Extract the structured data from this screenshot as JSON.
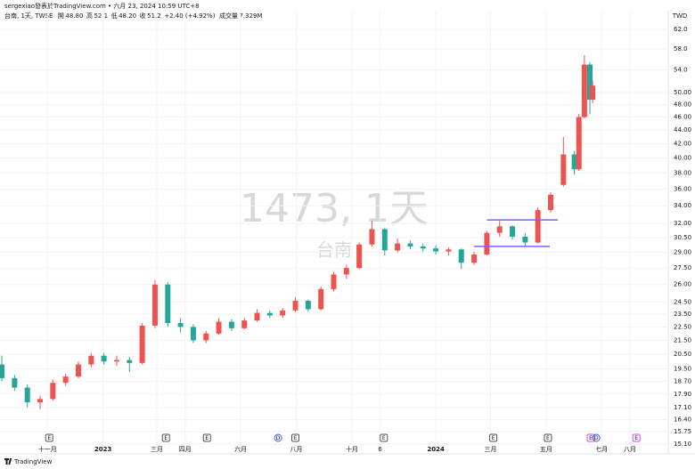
{
  "header": {
    "author": "sergexiao發表於TradingView.com • 六月 23, 2024 10:59 UTC+8",
    "symbol": "台南, 1天, TWSE",
    "ohlc": [
      {
        "label": "開",
        "value": "48.80"
      },
      {
        "label": "高",
        "value": "52.1"
      },
      {
        "label": "低",
        "value": "48.20"
      },
      {
        "label": "收",
        "value": "51.2"
      }
    ],
    "change": "+2.40 (+4.92%)",
    "volume_label": "成交量",
    "volume": "7.329M"
  },
  "watermark": {
    "line1": "1473, 1天",
    "line2": "台南"
  },
  "footer": {
    "brand": "TradingView"
  },
  "chart_data": {
    "type": "candlestick",
    "currency": "TWD",
    "log_scale": true,
    "grid": true,
    "up_color": "#ef5350",
    "down_color": "#26a69a",
    "x": [
      "2022-09-12",
      "2022-09-26",
      "2022-10-10",
      "2022-10-24",
      "2022-11-07",
      "2022-11-21",
      "2022-12-05",
      "2022-12-19",
      "2023-01-02",
      "2023-01-16",
      "2023-01-30",
      "2023-02-13",
      "2023-02-27",
      "2023-03-13",
      "2023-03-27",
      "2023-04-10",
      "2023-04-24",
      "2023-05-08",
      "2023-05-22",
      "2023-06-05",
      "2023-06-19",
      "2023-07-03",
      "2023-07-17",
      "2023-07-31",
      "2023-08-14",
      "2023-08-28",
      "2023-09-11",
      "2023-09-25",
      "2023-10-09",
      "2023-10-23",
      "2023-11-06",
      "2023-11-20",
      "2023-12-04",
      "2023-12-18",
      "2024-01-01",
      "2024-01-15",
      "2024-01-29",
      "2024-02-12",
      "2024-02-26",
      "2024-03-11",
      "2024-03-25",
      "2024-04-08",
      "2024-04-22",
      "2024-05-06",
      "2024-05-20",
      "2024-06-01",
      "2024-06-06",
      "2024-06-12",
      "2024-06-18",
      "2024-06-21"
    ],
    "open": [
      19.8,
      18.9,
      18.3,
      17.4,
      17.6,
      18.6,
      19.0,
      19.8,
      20.4,
      20.0,
      20.1,
      19.9,
      22.6,
      26.0,
      22.8,
      22.5,
      21.5,
      22.0,
      22.9,
      22.4,
      23.0,
      23.6,
      23.4,
      23.8,
      24.6,
      23.9,
      25.6,
      26.9,
      27.5,
      29.8,
      31.4,
      29.2,
      29.9,
      29.6,
      29.4,
      29.1,
      29.3,
      28.0,
      28.8,
      31.0,
      31.7,
      30.6,
      30.0,
      33.5,
      36.5,
      40.5,
      38.5,
      46.0,
      55.0,
      48.8
    ],
    "high": [
      20.4,
      19.1,
      18.5,
      17.8,
      18.8,
      19.2,
      20.0,
      20.6,
      20.6,
      20.4,
      20.3,
      22.8,
      26.4,
      26.2,
      23.2,
      22.7,
      22.2,
      23.2,
      23.1,
      23.2,
      23.9,
      23.8,
      24.0,
      24.9,
      24.7,
      25.8,
      27.1,
      27.8,
      30.0,
      32.3,
      31.5,
      30.4,
      30.2,
      29.9,
      29.7,
      29.5,
      29.4,
      29.1,
      31.2,
      32.3,
      31.8,
      31.0,
      33.8,
      35.6,
      43.0,
      41.0,
      46.5,
      56.8,
      55.5,
      52.1
    ],
    "low": [
      18.7,
      18.1,
      17.1,
      17.0,
      17.5,
      18.4,
      18.9,
      19.6,
      19.8,
      19.7,
      19.3,
      19.8,
      22.4,
      22.5,
      22.1,
      21.3,
      21.3,
      21.9,
      22.2,
      22.3,
      22.9,
      23.2,
      23.2,
      23.7,
      23.7,
      23.8,
      25.4,
      26.5,
      27.4,
      29.6,
      28.7,
      29.0,
      29.3,
      29.1,
      28.8,
      28.7,
      27.4,
      27.8,
      28.7,
      30.6,
      30.3,
      29.6,
      29.9,
      33.2,
      36.3,
      37.8,
      38.3,
      45.8,
      46.5,
      48.2
    ],
    "close": [
      18.9,
      18.3,
      17.4,
      17.6,
      18.6,
      19.0,
      19.8,
      20.4,
      20.0,
      20.1,
      19.9,
      22.6,
      26.0,
      22.8,
      22.5,
      21.5,
      22.0,
      22.9,
      22.4,
      23.0,
      23.6,
      23.4,
      23.8,
      24.6,
      23.9,
      25.6,
      26.9,
      27.5,
      29.8,
      31.4,
      29.2,
      29.9,
      29.6,
      29.4,
      29.1,
      29.3,
      28.0,
      28.8,
      31.0,
      31.7,
      30.6,
      30.0,
      33.5,
      35.3,
      40.5,
      38.5,
      46.0,
      55.0,
      48.8,
      51.2
    ],
    "xlim": [
      "2022-09-10",
      "2024-09-12"
    ],
    "xticks": [
      {
        "value": "2022-11-01",
        "label": "十一月"
      },
      {
        "value": "2023-01-01",
        "label": "2023"
      },
      {
        "value": "2023-03-01",
        "label": "三月"
      },
      {
        "value": "2023-04-01",
        "label": "四月"
      },
      {
        "value": "2023-06-01",
        "label": "六月"
      },
      {
        "value": "2023-08-01",
        "label": "八月"
      },
      {
        "value": "2023-10-01",
        "label": "十月"
      },
      {
        "value": "2023-11-01",
        "label": "6"
      },
      {
        "value": "2024-01-01",
        "label": "2024"
      },
      {
        "value": "2024-03-01",
        "label": "三月"
      },
      {
        "value": "2024-05-01",
        "label": "五月"
      },
      {
        "value": "2024-07-01",
        "label": "七月"
      },
      {
        "value": "2024-08-01",
        "label": "八月"
      }
    ],
    "ylim": [
      15.05,
      64.9
    ],
    "yticks": [
      {
        "value": 62,
        "label": "62.0"
      },
      {
        "value": 58,
        "label": "58.0"
      },
      {
        "value": 54,
        "label": "54.0"
      },
      {
        "value": 50,
        "label": "50.00"
      },
      {
        "value": 48,
        "label": "48.00"
      },
      {
        "value": 46,
        "label": "46.00"
      },
      {
        "value": 44,
        "label": "44.00"
      },
      {
        "value": 42,
        "label": "42.00"
      },
      {
        "value": 40,
        "label": "40.00"
      },
      {
        "value": 38,
        "label": "38.00"
      },
      {
        "value": 36,
        "label": "36.00"
      },
      {
        "value": 34,
        "label": "34.00"
      },
      {
        "value": 32,
        "label": "32.00"
      },
      {
        "value": 30.5,
        "label": "30.50"
      },
      {
        "value": 29,
        "label": "29.00"
      },
      {
        "value": 27.5,
        "label": "27.50"
      },
      {
        "value": 26,
        "label": "26.00"
      },
      {
        "value": 24.5,
        "label": "24.50"
      },
      {
        "value": 23.5,
        "label": "23.50"
      },
      {
        "value": 22.5,
        "label": "22.50"
      },
      {
        "value": 21.5,
        "label": "21.50"
      },
      {
        "value": 20.5,
        "label": "20.50"
      },
      {
        "value": 19.5,
        "label": "19.50"
      },
      {
        "value": 18.7,
        "label": "18.70"
      },
      {
        "value": 17.9,
        "label": "17.90"
      },
      {
        "value": 17.1,
        "label": "17.10"
      },
      {
        "value": 16.4,
        "label": "16.40"
      },
      {
        "value": 15.75,
        "label": "15.75"
      },
      {
        "value": 15.1,
        "label": "15.10"
      }
    ],
    "levels": [
      {
        "value": 32.4,
        "from": "2024-02-26",
        "to": "2024-05-14"
      },
      {
        "value": 29.6,
        "from": "2024-02-12",
        "to": "2024-05-05"
      }
    ],
    "level_color": "#7b61ff",
    "events": [
      {
        "date": "2022-11-03",
        "label": "E",
        "color": "#555555"
      },
      {
        "date": "2023-03-11",
        "label": "E",
        "color": "#555555"
      },
      {
        "date": "2023-04-25",
        "label": "E",
        "color": "#555555"
      },
      {
        "date": "2023-07-12",
        "label": "D",
        "color": "#2962ff"
      },
      {
        "date": "2023-07-31",
        "label": "E",
        "color": "#555555"
      },
      {
        "date": "2023-11-05",
        "label": "E",
        "color": "#555555"
      },
      {
        "date": "2024-03-04",
        "label": "E",
        "color": "#555555"
      },
      {
        "date": "2024-05-03",
        "label": "E",
        "color": "#555555"
      },
      {
        "date": "2024-06-19",
        "label": "E",
        "color": "#e040fb"
      },
      {
        "date": "2024-06-25",
        "label": "D",
        "color": "#2962ff"
      },
      {
        "date": "2024-08-08",
        "label": "E",
        "color": "#e040fb"
      }
    ]
  }
}
